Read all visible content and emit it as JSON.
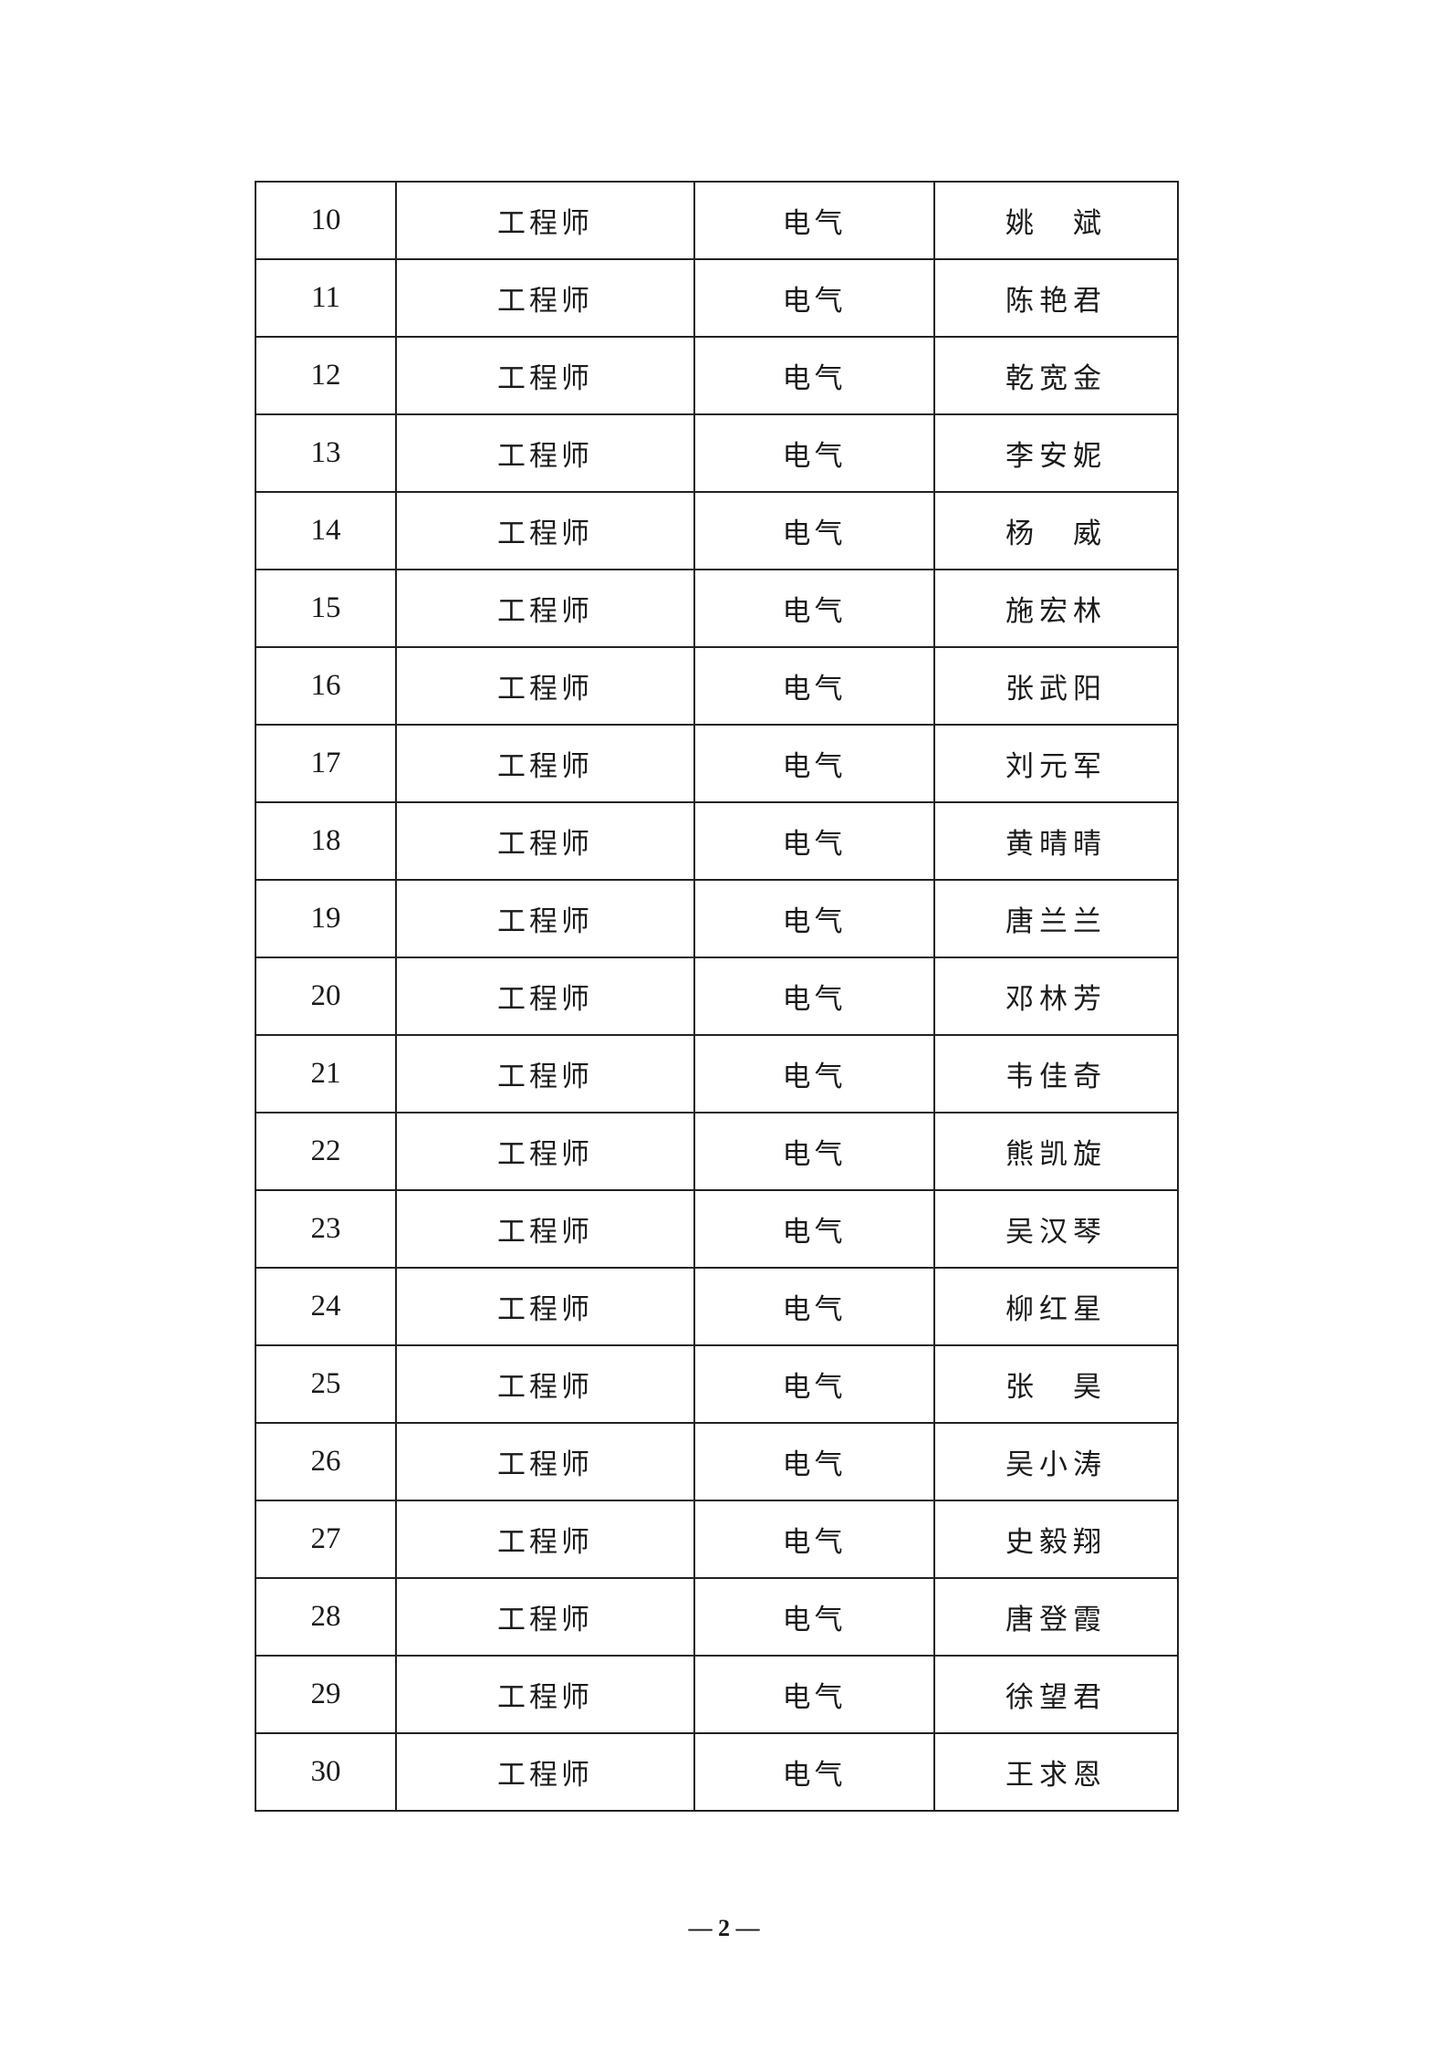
{
  "table": {
    "rows": [
      {
        "no": "10",
        "title": "工程师",
        "field": "电气",
        "name": "姚　斌"
      },
      {
        "no": "11",
        "title": "工程师",
        "field": "电气",
        "name": "陈艳君"
      },
      {
        "no": "12",
        "title": "工程师",
        "field": "电气",
        "name": "乾宽金"
      },
      {
        "no": "13",
        "title": "工程师",
        "field": "电气",
        "name": "李安妮"
      },
      {
        "no": "14",
        "title": "工程师",
        "field": "电气",
        "name": "杨　威"
      },
      {
        "no": "15",
        "title": "工程师",
        "field": "电气",
        "name": "施宏林"
      },
      {
        "no": "16",
        "title": "工程师",
        "field": "电气",
        "name": "张武阳"
      },
      {
        "no": "17",
        "title": "工程师",
        "field": "电气",
        "name": "刘元军"
      },
      {
        "no": "18",
        "title": "工程师",
        "field": "电气",
        "name": "黄晴晴"
      },
      {
        "no": "19",
        "title": "工程师",
        "field": "电气",
        "name": "唐兰兰"
      },
      {
        "no": "20",
        "title": "工程师",
        "field": "电气",
        "name": "邓林芳"
      },
      {
        "no": "21",
        "title": "工程师",
        "field": "电气",
        "name": "韦佳奇"
      },
      {
        "no": "22",
        "title": "工程师",
        "field": "电气",
        "name": "熊凯旋"
      },
      {
        "no": "23",
        "title": "工程师",
        "field": "电气",
        "name": "吴汉琴"
      },
      {
        "no": "24",
        "title": "工程师",
        "field": "电气",
        "name": "柳红星"
      },
      {
        "no": "25",
        "title": "工程师",
        "field": "电气",
        "name": "张　昊"
      },
      {
        "no": "26",
        "title": "工程师",
        "field": "电气",
        "name": "吴小涛"
      },
      {
        "no": "27",
        "title": "工程师",
        "field": "电气",
        "name": "史毅翔"
      },
      {
        "no": "28",
        "title": "工程师",
        "field": "电气",
        "name": "唐登霞"
      },
      {
        "no": "29",
        "title": "工程师",
        "field": "电气",
        "name": "徐望君"
      },
      {
        "no": "30",
        "title": "工程师",
        "field": "电气",
        "name": "王求恩"
      }
    ]
  },
  "footer": {
    "page_number": "— 2 —"
  }
}
